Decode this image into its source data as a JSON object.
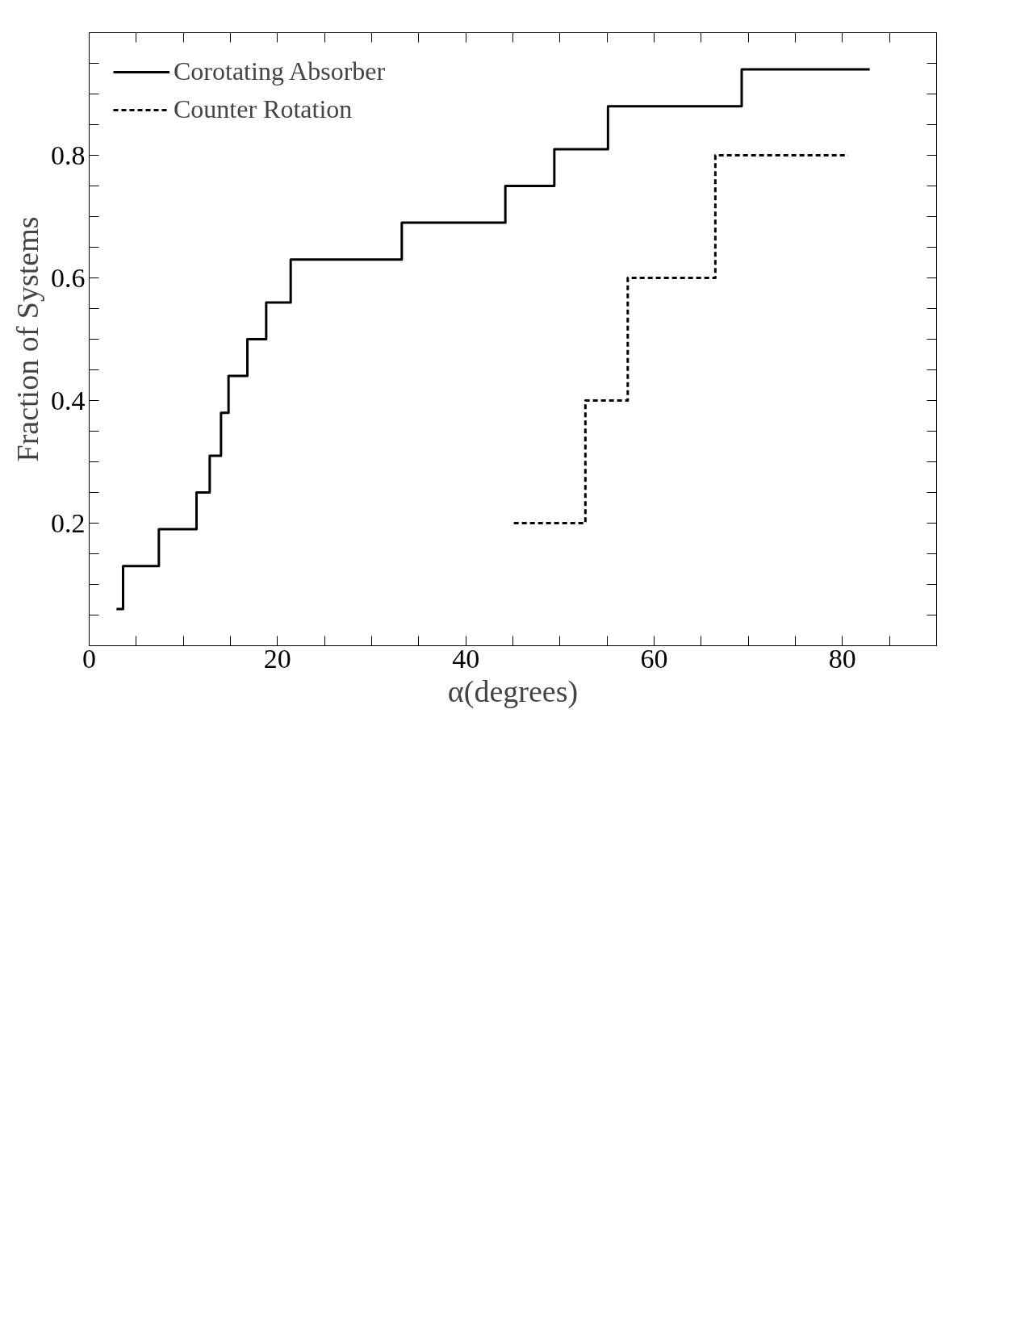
{
  "chart_data": {
    "type": "step",
    "xlabel": "α(degrees)",
    "ylabel": "Fraction of Systems",
    "xlim": [
      0,
      90
    ],
    "ylim": [
      0,
      1.0
    ],
    "xticks": [
      0,
      {
        "value": 5,
        "label": null
      },
      {
        "value": 10,
        "label": null
      },
      {
        "value": 15,
        "label": null
      },
      20,
      {
        "value": 25,
        "label": null
      },
      {
        "value": 30,
        "label": null
      },
      {
        "value": 35,
        "label": null
      },
      40,
      {
        "value": 45,
        "label": null
      },
      {
        "value": 50,
        "label": null
      },
      {
        "value": 55,
        "label": null
      },
      60,
      {
        "value": 65,
        "label": null
      },
      {
        "value": 70,
        "label": null
      },
      {
        "value": 75,
        "label": null
      },
      80,
      {
        "value": 85,
        "label": null
      }
    ],
    "yticks": [
      {
        "value": 0.05,
        "label": null
      },
      {
        "value": 0.1,
        "label": null
      },
      {
        "value": 0.15,
        "label": null
      },
      0.2,
      {
        "value": 0.25,
        "label": null
      },
      {
        "value": 0.3,
        "label": null
      },
      {
        "value": 0.35,
        "label": null
      },
      0.4,
      {
        "value": 0.45,
        "label": null
      },
      {
        "value": 0.5,
        "label": null
      },
      {
        "value": 0.55,
        "label": null
      },
      0.6,
      {
        "value": 0.65,
        "label": null
      },
      {
        "value": 0.7,
        "label": null
      },
      {
        "value": 0.75,
        "label": null
      },
      0.8,
      {
        "value": 0.85,
        "label": null
      },
      {
        "value": 0.9,
        "label": null
      },
      {
        "value": 0.95,
        "label": null
      }
    ],
    "series": [
      {
        "name": "Corotating Absorber",
        "color": "#000000",
        "line_style": "solid",
        "x": [
          2.9,
          3.6,
          7.4,
          11.4,
          12.8,
          14.0,
          14.8,
          16.8,
          18.8,
          21.4,
          33.2,
          44.2,
          49.4,
          55.1,
          69.3,
          82.9
        ],
        "values": [
          0.06,
          0.13,
          0.19,
          0.25,
          0.31,
          0.38,
          0.44,
          0.5,
          0.56,
          0.63,
          0.69,
          0.75,
          0.81,
          0.88,
          0.94,
          0.94
        ]
      },
      {
        "name": "Counter Rotation",
        "color": "#000000",
        "line_style": "dashed",
        "x": [
          45.1,
          52.7,
          57.2,
          66.5,
          80.6
        ],
        "values": [
          0.2,
          0.4,
          0.6,
          0.8,
          0.8
        ]
      }
    ],
    "legend": "top left",
    "grid": false
  }
}
